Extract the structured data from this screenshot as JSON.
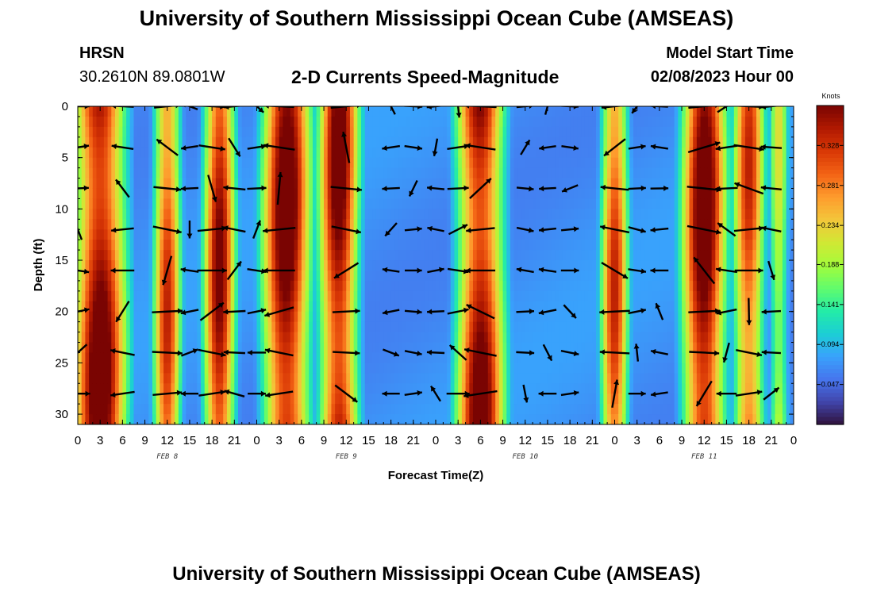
{
  "header": {
    "title": "University of Southern Mississippi Ocean Cube (AMSEAS)",
    "station_name": "HRSN",
    "station_coords": "30.2610N  89.0801W",
    "plot_title": "2-D Currents Speed-Magnitude",
    "model_start_label": "Model Start Time",
    "model_start_value": "02/08/2023 Hour 00"
  },
  "footer_title": "University of Southern Mississippi Ocean Cube (AMSEAS)",
  "colors": {
    "scale": [
      "#30123b",
      "#4145ab",
      "#4675ed",
      "#39a2fc",
      "#1bcfd4",
      "#24eca6",
      "#61fc6c",
      "#a4fc3b",
      "#d1e834",
      "#f3c63a",
      "#fe9b2d",
      "#f36315",
      "#d93806",
      "#b11901",
      "#7a0402"
    ],
    "arrow": "#000000"
  },
  "chart_data": {
    "type": "heatmap",
    "title": "2-D Currents Speed-Magnitude",
    "xlabel": "Forecast Time(Z)",
    "ylabel": "Depth (ft)",
    "xlim": [
      0,
      96
    ],
    "ylim": [
      31,
      0
    ],
    "x_ticks": [
      0,
      3,
      6,
      9,
      12,
      15,
      18,
      21,
      24,
      27,
      30,
      33,
      36,
      39,
      42,
      45,
      48,
      51,
      54,
      57,
      60,
      63,
      66,
      69,
      72,
      75,
      78,
      81,
      84,
      87,
      90,
      93,
      96
    ],
    "x_tick_labels": [
      "0",
      "3",
      "6",
      "9",
      "12",
      "15",
      "18",
      "21",
      "0",
      "3",
      "6",
      "9",
      "12",
      "15",
      "18",
      "21",
      "0",
      "3",
      "6",
      "9",
      "12",
      "15",
      "18",
      "21",
      "0",
      "3",
      "6",
      "9",
      "12",
      "15",
      "18",
      "21",
      "0"
    ],
    "y_ticks": [
      0,
      5,
      10,
      15,
      20,
      25,
      30
    ],
    "y_tick_labels": [
      "0",
      "5",
      "10",
      "15",
      "20",
      "25",
      "30"
    ],
    "day_labels": [
      {
        "x": 12,
        "label": "FEB 8"
      },
      {
        "x": 36,
        "label": "FEB 9"
      },
      {
        "x": 60,
        "label": "FEB 10"
      },
      {
        "x": 84,
        "label": "FEB 11"
      }
    ],
    "colorbar": {
      "label": "Knots",
      "min": 0.0,
      "max": 0.375,
      "ticks": [
        0.047,
        0.094,
        0.141,
        0.188,
        0.234,
        0.281,
        0.328
      ]
    },
    "speed_peaks_knots": [
      {
        "hour": 3,
        "speed": 0.37,
        "width": 2.6
      },
      {
        "hour": 12,
        "speed": 0.3,
        "width": 1.4
      },
      {
        "hour": 19,
        "speed": 0.34,
        "width": 1.6
      },
      {
        "hour": 28,
        "speed": 0.37,
        "width": 2.4
      },
      {
        "hour": 35,
        "speed": 0.36,
        "width": 2.0
      },
      {
        "hour": 54,
        "speed": 0.36,
        "width": 2.4
      },
      {
        "hour": 72,
        "speed": 0.3,
        "width": 1.4
      },
      {
        "hour": 84,
        "speed": 0.37,
        "width": 2.2
      },
      {
        "hour": 90,
        "speed": 0.3,
        "width": 1.6
      },
      {
        "hour": 94,
        "speed": 0.2,
        "width": 1.0
      }
    ],
    "background_speed_knots": 0.07,
    "arrow_depths_ft": [
      0,
      4,
      8,
      12,
      16,
      20,
      24,
      28
    ],
    "arrow_hours": [
      0,
      6,
      12,
      15,
      18,
      21,
      24,
      27,
      36,
      42,
      45,
      48,
      51,
      54,
      60,
      63,
      66,
      72,
      75,
      78,
      84,
      87,
      90,
      93
    ]
  }
}
